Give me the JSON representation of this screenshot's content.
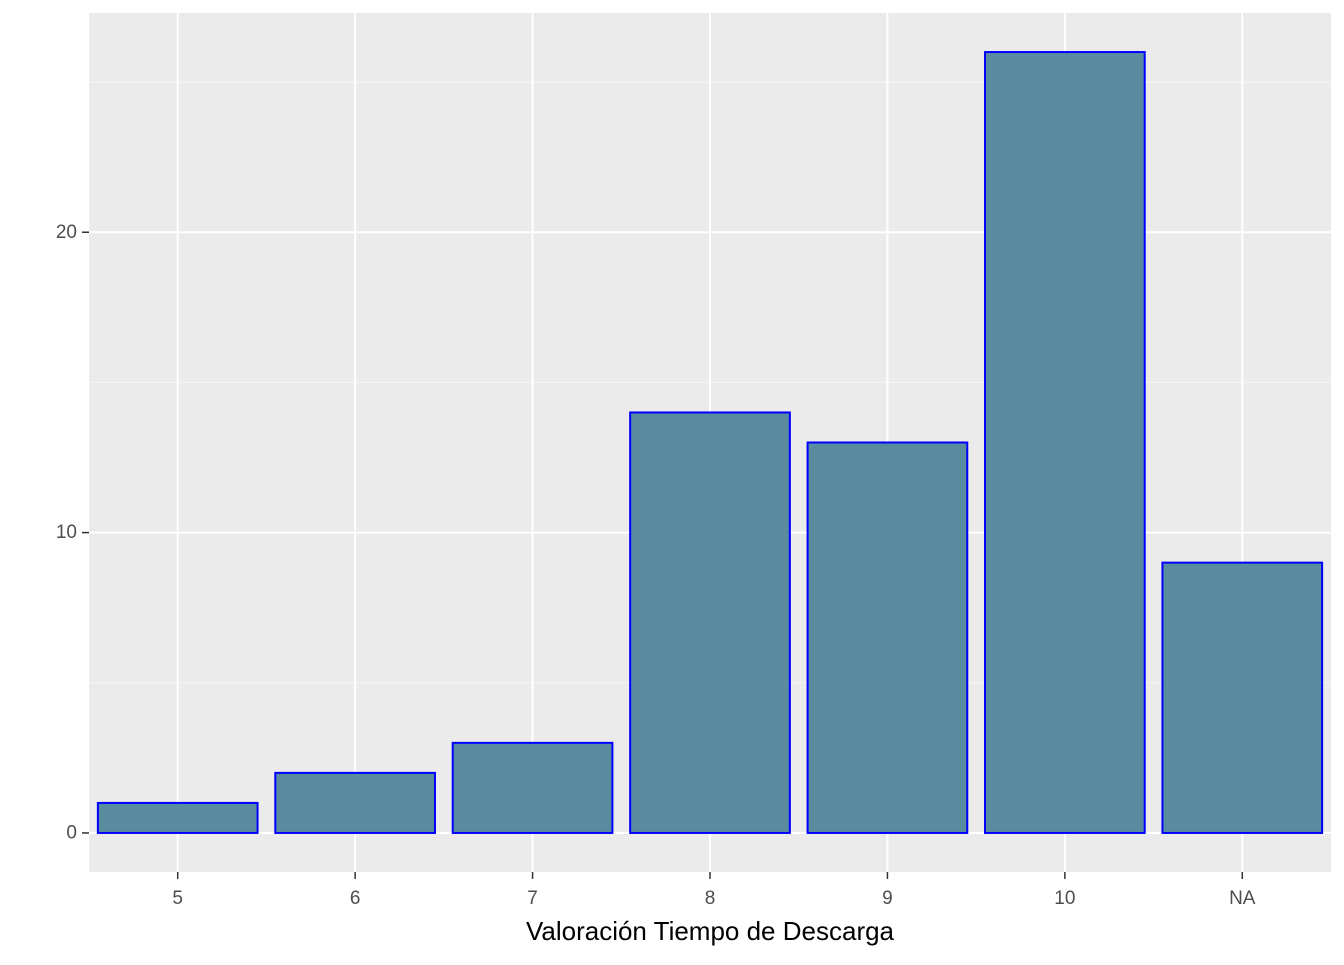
{
  "chart_data": {
    "type": "bar",
    "categories": [
      "5",
      "6",
      "7",
      "8",
      "9",
      "10",
      "NA"
    ],
    "values": [
      1,
      2,
      3,
      14,
      13,
      26,
      9
    ],
    "title": "",
    "xlabel": "Valoración Tiempo de Descarga",
    "ylabel": "",
    "ylim": [
      -1.3,
      27.3
    ],
    "y_ticks": [
      0,
      10,
      20
    ],
    "y_tick_labels": [
      "0",
      "10",
      "20"
    ],
    "y_minor_ticks": [
      5,
      15,
      25
    ],
    "grid": true,
    "legend": "none",
    "colors": {
      "panel_background": "#ebebeb",
      "grid_major": "#ffffff",
      "grid_minor": "#f5f5f5",
      "bar_fill": "#5a8ca0",
      "bar_outline": "#0000ff",
      "tick_text": "#4d4d4d",
      "tick_mark": "#333333"
    }
  }
}
